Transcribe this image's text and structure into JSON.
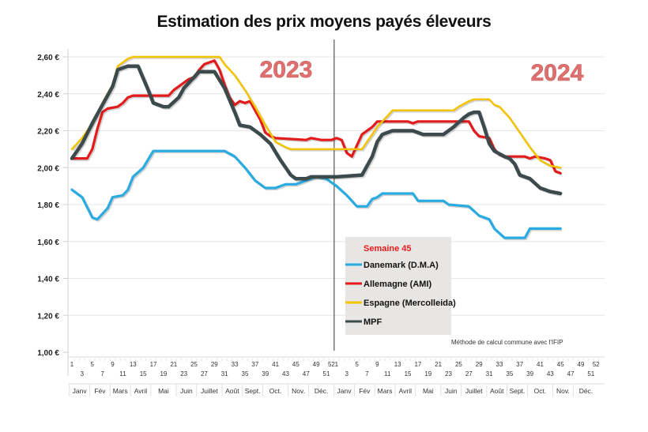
{
  "chart_data": {
    "type": "line",
    "title": "Estimation des prix moyens payés éleveurs",
    "xlabel": "",
    "ylabel": "",
    "ylim": [
      1.0,
      2.6
    ],
    "yticks": [
      "2,60 €",
      "2,40 €",
      "2,20 €",
      "2,00 €",
      "1,80 €",
      "1,60 €",
      "1,40 €",
      "1,20 €",
      "1,00 €"
    ],
    "ytick_values": [
      2.6,
      2.4,
      2.2,
      2.0,
      1.8,
      1.6,
      1.4,
      1.2,
      1.0
    ],
    "grid": true,
    "years": [
      "2023",
      "2024"
    ],
    "week_ticks": [
      1,
      3,
      5,
      7,
      9,
      11,
      13,
      15,
      17,
      19,
      21,
      23,
      25,
      27,
      29,
      31,
      33,
      35,
      37,
      39,
      41,
      43,
      45,
      47,
      49,
      51,
      52
    ],
    "months": [
      "Janv",
      "Fév",
      "Mars",
      "Avril",
      "Mai",
      "Juin",
      "Juillet",
      "Août",
      "Sept.",
      "Oct.",
      "Nov.",
      "Déc."
    ],
    "legend_title": "Semaine 45",
    "legend_placement": "bottom-center",
    "note": "Méthode de calcul commune avec l'IFIP",
    "x_description": "Week index: 2023 weeks 1-52, then 2024 weeks 1-45",
    "series": [
      {
        "name": "Danemark (D.M.A)",
        "color": "#29abe2",
        "points_2023": [
          [
            1,
            1.88
          ],
          [
            3,
            1.84
          ],
          [
            5,
            1.73
          ],
          [
            6,
            1.72
          ],
          [
            8,
            1.78
          ],
          [
            9,
            1.84
          ],
          [
            11,
            1.85
          ],
          [
            12,
            1.88
          ],
          [
            13,
            1.95
          ],
          [
            15,
            2.0
          ],
          [
            17,
            2.09
          ],
          [
            31,
            2.09
          ],
          [
            33,
            2.06
          ],
          [
            35,
            2.0
          ],
          [
            37,
            1.93
          ],
          [
            39,
            1.89
          ],
          [
            41,
            1.89
          ],
          [
            43,
            1.91
          ],
          [
            45,
            1.91
          ],
          [
            47,
            1.93
          ],
          [
            49,
            1.95
          ],
          [
            51,
            1.94
          ],
          [
            52,
            1.92
          ]
        ],
        "points_2024": [
          [
            1,
            1.9
          ],
          [
            3,
            1.85
          ],
          [
            5,
            1.79
          ],
          [
            7,
            1.79
          ],
          [
            8,
            1.83
          ],
          [
            9,
            1.84
          ],
          [
            10,
            1.86
          ],
          [
            16,
            1.86
          ],
          [
            17,
            1.82
          ],
          [
            22,
            1.82
          ],
          [
            23,
            1.8
          ],
          [
            27,
            1.79
          ],
          [
            29,
            1.74
          ],
          [
            31,
            1.72
          ],
          [
            32,
            1.67
          ],
          [
            34,
            1.62
          ],
          [
            38,
            1.62
          ],
          [
            39,
            1.67
          ],
          [
            45,
            1.67
          ]
        ]
      },
      {
        "name": "Allemagne (AMI)",
        "color": "#e31b1b",
        "points_2023": [
          [
            1,
            2.05
          ],
          [
            4,
            2.05
          ],
          [
            5,
            2.1
          ],
          [
            6,
            2.21
          ],
          [
            7,
            2.3
          ],
          [
            8,
            2.32
          ],
          [
            10,
            2.33
          ],
          [
            11,
            2.35
          ],
          [
            12,
            2.38
          ],
          [
            13,
            2.39
          ],
          [
            20,
            2.39
          ],
          [
            21,
            2.42
          ],
          [
            22,
            2.44
          ],
          [
            24,
            2.48
          ],
          [
            25,
            2.49
          ],
          [
            26,
            2.53
          ],
          [
            27,
            2.56
          ],
          [
            28,
            2.57
          ],
          [
            29,
            2.58
          ],
          [
            30,
            2.53
          ],
          [
            31,
            2.45
          ],
          [
            32,
            2.38
          ],
          [
            33,
            2.34
          ],
          [
            34,
            2.36
          ],
          [
            35,
            2.35
          ],
          [
            36,
            2.36
          ],
          [
            37,
            2.31
          ],
          [
            38,
            2.26
          ],
          [
            39,
            2.19
          ],
          [
            40,
            2.17
          ],
          [
            41,
            2.16
          ],
          [
            47,
            2.15
          ],
          [
            48,
            2.16
          ],
          [
            50,
            2.15
          ],
          [
            52,
            2.15
          ]
        ],
        "points_2024": [
          [
            1,
            2.16
          ],
          [
            2,
            2.15
          ],
          [
            3,
            2.08
          ],
          [
            4,
            2.06
          ],
          [
            5,
            2.12
          ],
          [
            6,
            2.18
          ],
          [
            8,
            2.22
          ],
          [
            9,
            2.25
          ],
          [
            15,
            2.25
          ],
          [
            16,
            2.24
          ],
          [
            17,
            2.25
          ],
          [
            27,
            2.25
          ],
          [
            28,
            2.2
          ],
          [
            29,
            2.17
          ],
          [
            31,
            2.16
          ],
          [
            32,
            2.1
          ],
          [
            33,
            2.07
          ],
          [
            34,
            2.06
          ],
          [
            38,
            2.06
          ],
          [
            39,
            2.05
          ],
          [
            40,
            2.06
          ],
          [
            42,
            2.05
          ],
          [
            43,
            2.04
          ],
          [
            44,
            1.98
          ],
          [
            45,
            1.97
          ]
        ]
      },
      {
        "name": "Espagne (Mercolleida)",
        "color": "#f5c400",
        "points_2023": [
          [
            1,
            2.1
          ],
          [
            3,
            2.16
          ],
          [
            5,
            2.24
          ],
          [
            7,
            2.35
          ],
          [
            9,
            2.45
          ],
          [
            10,
            2.55
          ],
          [
            12,
            2.59
          ],
          [
            13,
            2.6
          ],
          [
            30,
            2.6
          ],
          [
            31,
            2.56
          ],
          [
            33,
            2.5
          ],
          [
            35,
            2.42
          ],
          [
            37,
            2.33
          ],
          [
            39,
            2.23
          ],
          [
            41,
            2.14
          ],
          [
            43,
            2.11
          ],
          [
            44,
            2.1
          ],
          [
            52,
            2.1
          ]
        ],
        "points_2024": [
          [
            1,
            2.1
          ],
          [
            6,
            2.1
          ],
          [
            7,
            2.14
          ],
          [
            9,
            2.22
          ],
          [
            10,
            2.25
          ],
          [
            11,
            2.28
          ],
          [
            12,
            2.31
          ],
          [
            24,
            2.31
          ],
          [
            25,
            2.33
          ],
          [
            27,
            2.36
          ],
          [
            28,
            2.37
          ],
          [
            31,
            2.37
          ],
          [
            32,
            2.34
          ],
          [
            33,
            2.33
          ],
          [
            35,
            2.27
          ],
          [
            37,
            2.19
          ],
          [
            39,
            2.11
          ],
          [
            41,
            2.04
          ],
          [
            43,
            2.01
          ],
          [
            45,
            2.0
          ]
        ]
      },
      {
        "name": "MPF",
        "color": "#3d4a4c",
        "points_2023": [
          [
            1,
            2.05
          ],
          [
            3,
            2.13
          ],
          [
            5,
            2.24
          ],
          [
            7,
            2.34
          ],
          [
            9,
            2.44
          ],
          [
            10,
            2.53
          ],
          [
            12,
            2.55
          ],
          [
            14,
            2.55
          ],
          [
            16,
            2.42
          ],
          [
            17,
            2.35
          ],
          [
            19,
            2.33
          ],
          [
            20,
            2.33
          ],
          [
            22,
            2.38
          ],
          [
            23,
            2.43
          ],
          [
            25,
            2.49
          ],
          [
            26,
            2.52
          ],
          [
            29,
            2.52
          ],
          [
            31,
            2.43
          ],
          [
            33,
            2.3
          ],
          [
            34,
            2.23
          ],
          [
            36,
            2.22
          ],
          [
            38,
            2.18
          ],
          [
            40,
            2.13
          ],
          [
            42,
            2.04
          ],
          [
            44,
            1.96
          ],
          [
            45,
            1.94
          ],
          [
            47,
            1.94
          ],
          [
            48,
            1.95
          ],
          [
            52,
            1.95
          ]
        ],
        "points_2024": [
          [
            1,
            1.95
          ],
          [
            6,
            1.96
          ],
          [
            8,
            2.06
          ],
          [
            9,
            2.14
          ],
          [
            10,
            2.18
          ],
          [
            12,
            2.2
          ],
          [
            16,
            2.2
          ],
          [
            18,
            2.18
          ],
          [
            22,
            2.18
          ],
          [
            24,
            2.22
          ],
          [
            26,
            2.27
          ],
          [
            27,
            2.29
          ],
          [
            28,
            2.3
          ],
          [
            29,
            2.3
          ],
          [
            30,
            2.22
          ],
          [
            31,
            2.13
          ],
          [
            32,
            2.09
          ],
          [
            34,
            2.06
          ],
          [
            35,
            2.05
          ],
          [
            36,
            2.02
          ],
          [
            37,
            1.96
          ],
          [
            39,
            1.94
          ],
          [
            41,
            1.89
          ],
          [
            43,
            1.87
          ],
          [
            45,
            1.86
          ]
        ]
      }
    ]
  }
}
